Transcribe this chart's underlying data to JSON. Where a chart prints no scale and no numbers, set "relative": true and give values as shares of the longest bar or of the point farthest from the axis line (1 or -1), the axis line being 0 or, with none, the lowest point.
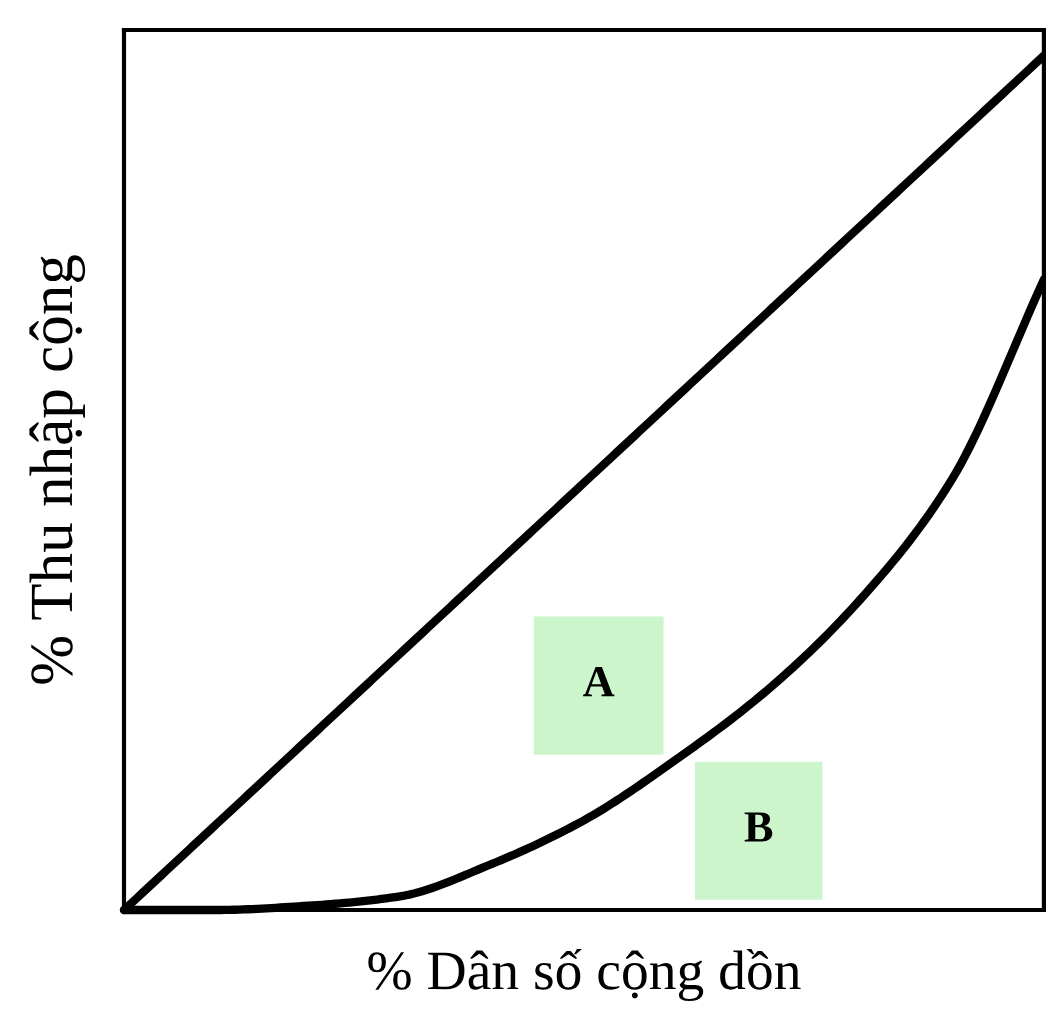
{
  "chart_data": {
    "type": "line",
    "relative": true,
    "xlabel": "% Dân số cộng dồn",
    "ylabel": "% Thu nhập cộng",
    "categories": [
      null,
      null,
      null,
      null,
      null,
      null,
      null,
      null,
      null,
      null,
      null
    ],
    "series": [
      {
        "color": "#000000",
        "values": [
          0,
          0.1,
          0.2,
          0.3,
          0.4,
          0.5,
          0.6,
          0.7,
          0.8,
          0.9,
          1
        ]
      },
      {
        "color": "#000000",
        "values": [
          0,
          0,
          0.005,
          0.016,
          0.054,
          0.105,
          0.176,
          0.258,
          0.363,
          0.504,
          0.738
        ]
      }
    ],
    "annotations": [
      "A",
      "B"
    ],
    "legend": false,
    "marker": "none",
    "line_style": "solid"
  }
}
